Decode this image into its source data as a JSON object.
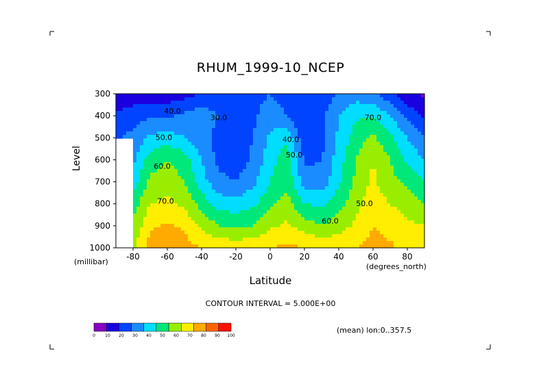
{
  "chart_data": {
    "type": "heatmap",
    "title": "RHUM_1999-10_NCEP",
    "xlabel": "Latitude",
    "ylabel": "Level",
    "x_units": "(degrees_north)",
    "y_units": "(millibar)",
    "xlim": [
      -90,
      90
    ],
    "ylim": [
      1000,
      300
    ],
    "x_ticks": [
      "-80",
      "-60",
      "-40",
      "-20",
      "0",
      "20",
      "40",
      "60",
      "80"
    ],
    "y_ticks": [
      "300",
      "400",
      "500",
      "600",
      "700",
      "800",
      "900",
      "1000"
    ],
    "contour_labels": [
      "40.0",
      "30.0",
      "50.0",
      "60.0",
      "70.0",
      "40.0",
      "50.0",
      "60.0",
      "70.0",
      "50.0"
    ],
    "contour_interval_text": "CONTOUR INTERVAL = 5.000E+00",
    "averaging_text": "(mean) lon:0..357.5",
    "levels": [
      300,
      400,
      500,
      600,
      700,
      800,
      900,
      1000
    ],
    "latitudes": [
      -90,
      -80,
      -70,
      -60,
      -50,
      -40,
      -30,
      -20,
      -10,
      0,
      10,
      20,
      30,
      40,
      50,
      60,
      70,
      80,
      90
    ],
    "values": [
      [
        12,
        13,
        14,
        14,
        16,
        20,
        22,
        22,
        26,
        30,
        25,
        21,
        24,
        30,
        35,
        33,
        22,
        12,
        8
      ],
      [
        22,
        26,
        28,
        28,
        32,
        36,
        30,
        20,
        28,
        36,
        30,
        20,
        28,
        40,
        48,
        50,
        40,
        28,
        18
      ],
      [
        28,
        33,
        42,
        45,
        40,
        34,
        26,
        22,
        30,
        42,
        48,
        22,
        26,
        42,
        55,
        62,
        52,
        40,
        30
      ],
      [
        null,
        38,
        55,
        60,
        55,
        40,
        27,
        24,
        32,
        46,
        56,
        28,
        30,
        45,
        60,
        70,
        60,
        48,
        40
      ],
      [
        null,
        45,
        62,
        66,
        60,
        44,
        33,
        30,
        37,
        50,
        58,
        34,
        34,
        48,
        62,
        72,
        63,
        58,
        50
      ],
      [
        null,
        55,
        70,
        72,
        68,
        56,
        46,
        44,
        48,
        58,
        64,
        50,
        48,
        56,
        67,
        76,
        70,
        66,
        60
      ],
      [
        null,
        62,
        78,
        82,
        78,
        68,
        60,
        58,
        60,
        68,
        72,
        65,
        60,
        65,
        72,
        80,
        76,
        72,
        70
      ],
      [
        null,
        68,
        84,
        88,
        84,
        80,
        78,
        76,
        78,
        80,
        82,
        80,
        78,
        78,
        80,
        84,
        82,
        76,
        74
      ]
    ],
    "colorbar": {
      "ticks": [
        "0",
        "10",
        "20",
        "30",
        "40",
        "50",
        "60",
        "70",
        "80",
        "90",
        "100"
      ],
      "colors": [
        "#8800c0",
        "#1a00e0",
        "#0044ff",
        "#1a8cff",
        "#00ddff",
        "#00e87a",
        "#99ee00",
        "#ffee00",
        "#ffaa00",
        "#ff6600",
        "#ff1100"
      ]
    }
  }
}
